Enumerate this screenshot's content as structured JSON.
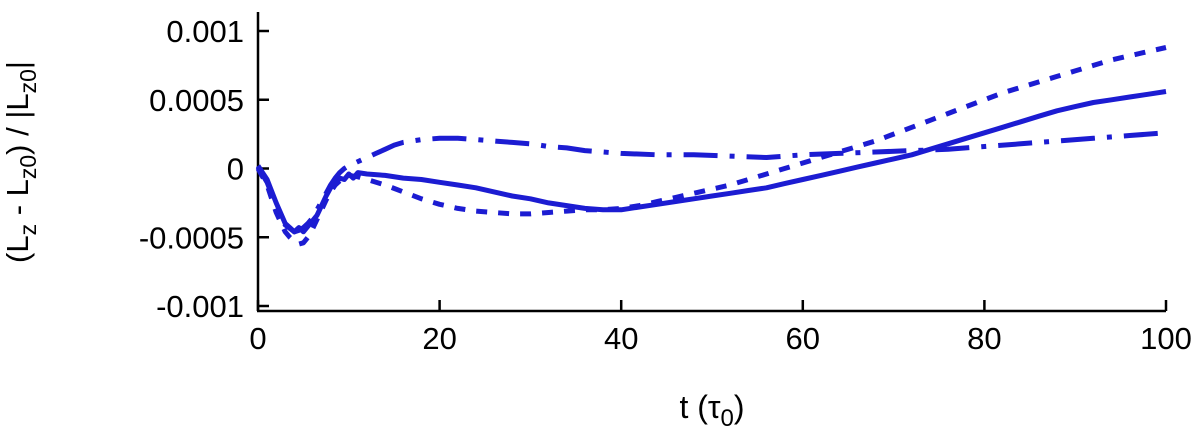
{
  "chart_data": {
    "type": "line",
    "title": "",
    "xlabel_text": "t (τ0)",
    "ylabel_text": "(Lz - Lz0) / |Lz0|",
    "xlabel_parts": [
      {
        "t": "t (",
        "sub": false
      },
      {
        "t": "τ",
        "sub": false
      },
      {
        "t": "0",
        "sub": true
      },
      {
        "t": ")",
        "sub": false
      }
    ],
    "ylabel_parts": [
      {
        "t": "(L",
        "sub": false
      },
      {
        "t": "z",
        "sub": true
      },
      {
        "t": " - L",
        "sub": false
      },
      {
        "t": "z0",
        "sub": true
      },
      {
        "t": ") / |L",
        "sub": false
      },
      {
        "t": "z0",
        "sub": true
      },
      {
        "t": "|",
        "sub": false
      }
    ],
    "xlim": [
      0,
      100
    ],
    "ylim": [
      -0.001,
      0.001
    ],
    "xticks": [
      0,
      20,
      40,
      60,
      80,
      100
    ],
    "xtick_labels": [
      "0",
      "20",
      "40",
      "60",
      "80",
      "100"
    ],
    "yticks": [
      0.001,
      0.0005,
      0,
      -0.0005,
      -0.001
    ],
    "ytick_labels": [
      "0.001",
      "0.0005",
      "0",
      "-0.0005",
      "-0.001"
    ],
    "grid": false,
    "legend": "none",
    "line_color": "#1c1cd2",
    "axis_color": "#000000",
    "background": "#ffffff",
    "series": [
      {
        "name": "solid",
        "dash": "",
        "width": 5,
        "points": [
          [
            0,
            2e-05
          ],
          [
            1,
            -8e-05
          ],
          [
            2,
            -0.00025
          ],
          [
            3,
            -0.0004
          ],
          [
            3.5,
            -0.00043
          ],
          [
            4,
            -0.00046
          ],
          [
            4.5,
            -0.00043
          ],
          [
            5,
            -0.00046
          ],
          [
            5.5,
            -0.00042
          ],
          [
            6,
            -0.00038
          ],
          [
            6.5,
            -0.00034
          ],
          [
            7,
            -0.00027
          ],
          [
            7.5,
            -0.0002
          ],
          [
            8,
            -0.00014
          ],
          [
            8.5,
            -0.0001
          ],
          [
            9,
            -7e-05
          ],
          [
            9.5,
            -8e-05
          ],
          [
            10,
            -4e-05
          ],
          [
            10.5,
            -7e-05
          ],
          [
            11,
            -3e-05
          ],
          [
            12,
            -4e-05
          ],
          [
            14,
            -5e-05
          ],
          [
            16,
            -7e-05
          ],
          [
            18,
            -8e-05
          ],
          [
            20,
            -0.0001
          ],
          [
            22,
            -0.00012
          ],
          [
            24,
            -0.00014
          ],
          [
            26,
            -0.00017
          ],
          [
            28,
            -0.0002
          ],
          [
            30,
            -0.00022
          ],
          [
            32,
            -0.00025
          ],
          [
            34,
            -0.00027
          ],
          [
            36,
            -0.00029
          ],
          [
            38,
            -0.0003
          ],
          [
            40,
            -0.0003
          ],
          [
            42,
            -0.00028
          ],
          [
            44,
            -0.00026
          ],
          [
            46,
            -0.00024
          ],
          [
            48,
            -0.00022
          ],
          [
            50,
            -0.0002
          ],
          [
            52,
            -0.00018
          ],
          [
            54,
            -0.00016
          ],
          [
            56,
            -0.00014
          ],
          [
            58,
            -0.00011
          ],
          [
            60,
            -8e-05
          ],
          [
            62,
            -5e-05
          ],
          [
            64,
            -2e-05
          ],
          [
            66,
            1e-05
          ],
          [
            68,
            4e-05
          ],
          [
            70,
            7e-05
          ],
          [
            72,
            0.0001
          ],
          [
            74,
            0.00014
          ],
          [
            76,
            0.00018
          ],
          [
            78,
            0.00022
          ],
          [
            80,
            0.00026
          ],
          [
            82,
            0.0003
          ],
          [
            84,
            0.00034
          ],
          [
            86,
            0.00038
          ],
          [
            88,
            0.00042
          ],
          [
            90,
            0.00045
          ],
          [
            92,
            0.00048
          ],
          [
            94,
            0.0005
          ],
          [
            96,
            0.00052
          ],
          [
            98,
            0.00054
          ],
          [
            100,
            0.00056
          ]
        ]
      },
      {
        "name": "short-dash",
        "dash": "11,11",
        "width": 5,
        "points": [
          [
            0,
            0
          ],
          [
            1,
            -0.00012
          ],
          [
            2,
            -0.00032
          ],
          [
            3,
            -0.00046
          ],
          [
            3.5,
            -0.0005
          ],
          [
            4,
            -0.00053
          ],
          [
            4.5,
            -0.00055
          ],
          [
            5,
            -0.00054
          ],
          [
            5.5,
            -0.0005
          ],
          [
            6,
            -0.00044
          ],
          [
            6.5,
            -0.00037
          ],
          [
            7,
            -0.0003
          ],
          [
            7.5,
            -0.00023
          ],
          [
            8,
            -0.00017
          ],
          [
            8.5,
            -0.00012
          ],
          [
            9,
            -9e-05
          ],
          [
            9.5,
            -7e-05
          ],
          [
            10,
            -5e-05
          ],
          [
            11,
            -6e-05
          ],
          [
            12,
            -8e-05
          ],
          [
            14,
            -0.00012
          ],
          [
            16,
            -0.00017
          ],
          [
            18,
            -0.00022
          ],
          [
            20,
            -0.00026
          ],
          [
            22,
            -0.00029
          ],
          [
            24,
            -0.00031
          ],
          [
            26,
            -0.00032
          ],
          [
            28,
            -0.00033
          ],
          [
            30,
            -0.00033
          ],
          [
            32,
            -0.00032
          ],
          [
            34,
            -0.00031
          ],
          [
            36,
            -0.0003
          ],
          [
            38,
            -0.0003
          ],
          [
            40,
            -0.00029
          ],
          [
            42,
            -0.00027
          ],
          [
            44,
            -0.00024
          ],
          [
            46,
            -0.00021
          ],
          [
            48,
            -0.00018
          ],
          [
            50,
            -0.00015
          ],
          [
            52,
            -0.00012
          ],
          [
            54,
            -8e-05
          ],
          [
            56,
            -4e-05
          ],
          [
            58,
            0
          ],
          [
            60,
            4e-05
          ],
          [
            62,
            8e-05
          ],
          [
            64,
            0.00012
          ],
          [
            66,
            0.00016
          ],
          [
            68,
            0.0002
          ],
          [
            70,
            0.00025
          ],
          [
            72,
            0.0003
          ],
          [
            74,
            0.00035
          ],
          [
            76,
            0.0004
          ],
          [
            78,
            0.00045
          ],
          [
            80,
            0.0005
          ],
          [
            82,
            0.00055
          ],
          [
            84,
            0.00059
          ],
          [
            86,
            0.00063
          ],
          [
            88,
            0.00067
          ],
          [
            90,
            0.00071
          ],
          [
            92,
            0.00075
          ],
          [
            94,
            0.00079
          ],
          [
            96,
            0.00082
          ],
          [
            98,
            0.00085
          ],
          [
            100,
            0.00088
          ]
        ]
      },
      {
        "name": "long-dash-dot",
        "dash": "34,12,5,12",
        "width": 5,
        "points": [
          [
            0,
            1e-05
          ],
          [
            1,
            -0.0001
          ],
          [
            2,
            -0.00027
          ],
          [
            3,
            -0.00041
          ],
          [
            4,
            -0.00046
          ],
          [
            4.5,
            -0.00045
          ],
          [
            5,
            -0.00043
          ],
          [
            5.5,
            -0.0004
          ],
          [
            6,
            -0.00036
          ],
          [
            6.5,
            -0.0003
          ],
          [
            7,
            -0.00024
          ],
          [
            7.5,
            -0.00018
          ],
          [
            8,
            -0.00012
          ],
          [
            8.5,
            -7e-05
          ],
          [
            9,
            -3e-05
          ],
          [
            9.5,
            0
          ],
          [
            10,
            2e-05
          ],
          [
            11,
            5e-05
          ],
          [
            12,
            8e-05
          ],
          [
            13,
            0.00011
          ],
          [
            14,
            0.00014
          ],
          [
            15,
            0.00017
          ],
          [
            16,
            0.00019
          ],
          [
            18,
            0.00021
          ],
          [
            20,
            0.00022
          ],
          [
            22,
            0.00022
          ],
          [
            24,
            0.00021
          ],
          [
            26,
            0.0002
          ],
          [
            28,
            0.00019
          ],
          [
            30,
            0.00018
          ],
          [
            32,
            0.00016
          ],
          [
            34,
            0.00015
          ],
          [
            36,
            0.00013
          ],
          [
            38,
            0.00012
          ],
          [
            40,
            0.00011
          ],
          [
            44,
            0.0001
          ],
          [
            48,
            0.0001
          ],
          [
            52,
            9e-05
          ],
          [
            56,
            8e-05
          ],
          [
            60,
            0.0001
          ],
          [
            64,
            0.00011
          ],
          [
            68,
            0.00012
          ],
          [
            72,
            0.00013
          ],
          [
            76,
            0.00014
          ],
          [
            80,
            0.00016
          ],
          [
            84,
            0.00018
          ],
          [
            88,
            0.0002
          ],
          [
            92,
            0.00022
          ],
          [
            96,
            0.00024
          ],
          [
            100,
            0.00026
          ]
        ]
      }
    ]
  }
}
